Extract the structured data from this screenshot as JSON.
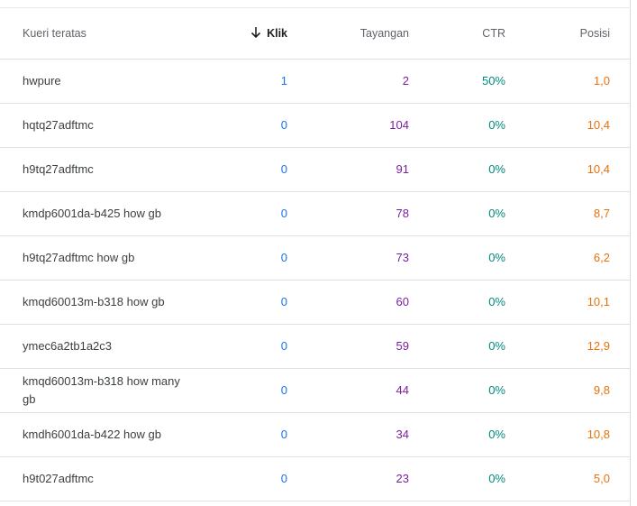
{
  "table": {
    "headers": {
      "query": "Kueri teratas",
      "clicks": "Klik",
      "impressions": "Tayangan",
      "ctr": "CTR",
      "position": "Posisi"
    },
    "sort": {
      "column": "clicks",
      "direction": "descending",
      "icon": "arrow-down-icon"
    },
    "colors": {
      "clicks": "#1a73e8",
      "impressions": "#7b1fa2",
      "ctr": "#00897b",
      "position": "#e8710a"
    },
    "rows": [
      {
        "query": "hwpure",
        "clicks": "1",
        "impressions": "2",
        "ctr": "50%",
        "position": "1,0"
      },
      {
        "query": "hqtq27adftmc",
        "clicks": "0",
        "impressions": "104",
        "ctr": "0%",
        "position": "10,4"
      },
      {
        "query": "h9tq27adftmc",
        "clicks": "0",
        "impressions": "91",
        "ctr": "0%",
        "position": "10,4"
      },
      {
        "query": "kmdp6001da-b425 how gb",
        "clicks": "0",
        "impressions": "78",
        "ctr": "0%",
        "position": "8,7"
      },
      {
        "query": "h9tq27adftmc how gb",
        "clicks": "0",
        "impressions": "73",
        "ctr": "0%",
        "position": "6,2"
      },
      {
        "query": "kmqd60013m-b318 how gb",
        "clicks": "0",
        "impressions": "60",
        "ctr": "0%",
        "position": "10,1"
      },
      {
        "query": "ymec6a2tb1a2c3",
        "clicks": "0",
        "impressions": "59",
        "ctr": "0%",
        "position": "12,9"
      },
      {
        "query": "kmqd60013m-b318 how many gb",
        "clicks": "0",
        "impressions": "44",
        "ctr": "0%",
        "position": "9,8"
      },
      {
        "query": "kmdh6001da-b422 how gb",
        "clicks": "0",
        "impressions": "34",
        "ctr": "0%",
        "position": "10,8"
      },
      {
        "query": "h9t027adftmc",
        "clicks": "0",
        "impressions": "23",
        "ctr": "0%",
        "position": "5,0"
      }
    ]
  }
}
